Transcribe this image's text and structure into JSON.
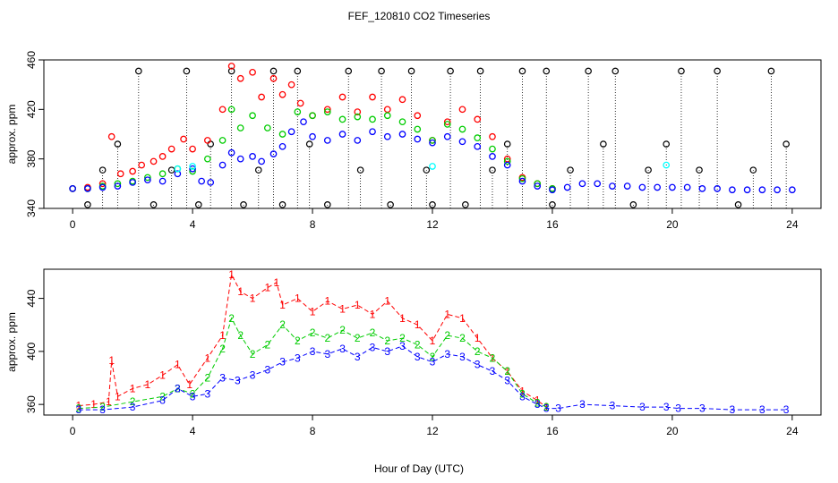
{
  "figure": {
    "title": "FEF_120810  CO2 Timeseries",
    "xlabel": "Hour of Day (UTC)"
  },
  "colors": {
    "s1": "#ff0000",
    "s2": "#00cc00",
    "s3": "#0000ff",
    "s4": "#00ffff",
    "marker": "#000000"
  },
  "chart_data": [
    {
      "type": "scatter",
      "ylabel": "approx. ppm",
      "xlim": [
        0,
        24
      ],
      "ylim": [
        340,
        460
      ],
      "xticks": [
        0,
        4,
        8,
        12,
        16,
        20,
        24
      ],
      "yticks": [
        340,
        380,
        420,
        460
      ],
      "grid": false,
      "series": [
        {
          "key": "s1",
          "x": [
            0,
            0.5,
            1,
            1.3,
            1.6,
            2,
            2.3,
            2.7,
            3,
            3.3,
            3.7,
            4,
            4.5,
            5,
            5.3,
            5.6,
            6,
            6.3,
            6.7,
            7,
            7.3,
            7.6,
            8,
            8.5,
            9,
            9.5,
            10,
            10.5,
            11,
            11.5,
            12,
            12.5,
            13,
            13.5,
            14,
            14.5,
            15,
            15.5,
            16
          ],
          "y": [
            356,
            357,
            360,
            398,
            368,
            370,
            375,
            378,
            382,
            388,
            396,
            388,
            395,
            420,
            455,
            445,
            450,
            430,
            445,
            432,
            440,
            425,
            415,
            420,
            430,
            418,
            430,
            420,
            428,
            415,
            395,
            410,
            420,
            412,
            398,
            380,
            365,
            360,
            356
          ]
        },
        {
          "key": "s2",
          "x": [
            0,
            0.5,
            1,
            1.5,
            2,
            2.5,
            3,
            3.5,
            4,
            4.5,
            5,
            5.3,
            5.6,
            6,
            6.5,
            7,
            7.5,
            8,
            8.5,
            9,
            9.5,
            10,
            10.5,
            11,
            11.5,
            12,
            12.5,
            13,
            13.5,
            14,
            14.5,
            15,
            15.5,
            16
          ],
          "y": [
            356,
            356,
            358,
            360,
            362,
            365,
            368,
            372,
            370,
            380,
            395,
            420,
            405,
            415,
            405,
            400,
            418,
            415,
            418,
            412,
            414,
            412,
            415,
            410,
            404,
            395,
            408,
            404,
            397,
            388,
            378,
            364,
            360,
            356
          ]
        },
        {
          "key": "s3",
          "x": [
            0,
            0.5,
            1,
            1.5,
            2,
            2.5,
            3,
            3.5,
            4,
            4.3,
            4.6,
            5,
            5.3,
            5.6,
            6,
            6.3,
            6.7,
            7,
            7.3,
            7.7,
            8,
            8.5,
            9,
            9.5,
            10,
            10.5,
            11,
            11.5,
            12,
            12.5,
            13,
            13.5,
            14,
            14.5,
            15,
            15.5,
            16,
            16.5,
            17,
            17.5,
            18,
            18.5,
            19,
            19.5,
            20,
            20.5,
            21,
            21.5,
            22,
            22.5,
            23,
            23.5,
            24
          ],
          "y": [
            356,
            356,
            357,
            358,
            361,
            363,
            362,
            368,
            372,
            362,
            361,
            375,
            385,
            380,
            382,
            378,
            384,
            390,
            402,
            410,
            398,
            395,
            400,
            395,
            402,
            398,
            400,
            396,
            393,
            398,
            394,
            390,
            382,
            375,
            362,
            358,
            355,
            357,
            360,
            360,
            358,
            358,
            357,
            357,
            357,
            357,
            356,
            356,
            355,
            355,
            355,
            355,
            355
          ]
        },
        {
          "key": "s4",
          "x": [
            3.5,
            4,
            12,
            19.8
          ],
          "y": [
            372,
            374,
            374,
            375
          ]
        }
      ],
      "spikes": {
        "x": [
          0.5,
          1,
          1.5,
          2.2,
          2.7,
          3.3,
          3.8,
          4.2,
          4.6,
          5.3,
          5.7,
          6.2,
          6.7,
          7,
          7.5,
          7.9,
          8.5,
          9.2,
          9.6,
          10.3,
          10.6,
          11.3,
          11.8,
          12,
          12.6,
          13.1,
          13.6,
          14,
          14.5,
          15,
          15.8,
          16,
          16.6,
          17.2,
          17.7,
          18.1,
          18.7,
          19.2,
          19.8,
          20.3,
          20.9,
          21.5,
          22.2,
          22.7,
          23.3,
          23.8
        ],
        "y": [
          343,
          371,
          392,
          451,
          343,
          371,
          451,
          343,
          392,
          451,
          343,
          371,
          451,
          343,
          451,
          392,
          343,
          451,
          371,
          451,
          343,
          451,
          371,
          343,
          451,
          343,
          451,
          371,
          392,
          451,
          451,
          343,
          371,
          451,
          392,
          451,
          343,
          371,
          392,
          451,
          371,
          451,
          343,
          371,
          451,
          392
        ]
      }
    },
    {
      "type": "line",
      "ylabel": "approx. ppm",
      "xlim": [
        0,
        24
      ],
      "ylim": [
        352,
        462
      ],
      "xticks": [
        0,
        4,
        8,
        12,
        16,
        20,
        24
      ],
      "yticks": [
        360,
        400,
        440
      ],
      "grid": false,
      "series": [
        {
          "key": "s1",
          "symbol": "1",
          "x": [
            0.2,
            0.7,
            1.2,
            1.3,
            1.5,
            2,
            2.5,
            3,
            3.5,
            3.9,
            4.5,
            5,
            5.3,
            5.6,
            6,
            6.5,
            6.8,
            7,
            7.5,
            8,
            8.5,
            9,
            9.5,
            10,
            10.5,
            11,
            11.5,
            12,
            12.5,
            13,
            13.5,
            14,
            14.5,
            15,
            15.5,
            15.8
          ],
          "y": [
            359,
            360,
            362,
            393,
            366,
            372,
            375,
            382,
            390,
            375,
            395,
            412,
            458,
            445,
            440,
            448,
            452,
            435,
            440,
            430,
            438,
            432,
            435,
            428,
            438,
            425,
            420,
            408,
            428,
            425,
            410,
            395,
            385,
            370,
            363,
            358
          ]
        },
        {
          "key": "s2",
          "symbol": "2",
          "x": [
            0.2,
            1,
            2,
            3,
            3.5,
            4,
            4.5,
            5,
            5.3,
            5.6,
            6,
            6.5,
            7,
            7.5,
            8,
            8.5,
            9,
            9.5,
            10,
            10.5,
            11,
            11.5,
            12,
            12.5,
            13,
            13.5,
            14,
            14.5,
            15,
            15.5,
            15.8
          ],
          "y": [
            357,
            358,
            362,
            366,
            372,
            368,
            380,
            402,
            425,
            412,
            398,
            405,
            420,
            408,
            414,
            410,
            416,
            410,
            414,
            408,
            410,
            405,
            396,
            412,
            410,
            400,
            395,
            385,
            368,
            361,
            358
          ]
        },
        {
          "key": "s3",
          "symbol": "3",
          "x": [
            0.2,
            1,
            2,
            3,
            3.5,
            4,
            4.5,
            5,
            5.5,
            6,
            6.5,
            7,
            7.5,
            8,
            8.5,
            9,
            9.5,
            10,
            10.5,
            11,
            11.5,
            12,
            12.5,
            13,
            13.5,
            14,
            14.5,
            15,
            15.5,
            15.8,
            16.2,
            17,
            18,
            19,
            19.8,
            20.2,
            21,
            22,
            23,
            23.8
          ],
          "y": [
            356,
            356,
            358,
            363,
            372,
            366,
            368,
            380,
            378,
            382,
            386,
            392,
            395,
            400,
            398,
            402,
            396,
            403,
            400,
            404,
            396,
            392,
            398,
            396,
            390,
            385,
            378,
            366,
            360,
            357,
            357,
            360,
            359,
            358,
            358,
            357,
            357,
            356,
            356,
            356
          ]
        }
      ]
    }
  ]
}
